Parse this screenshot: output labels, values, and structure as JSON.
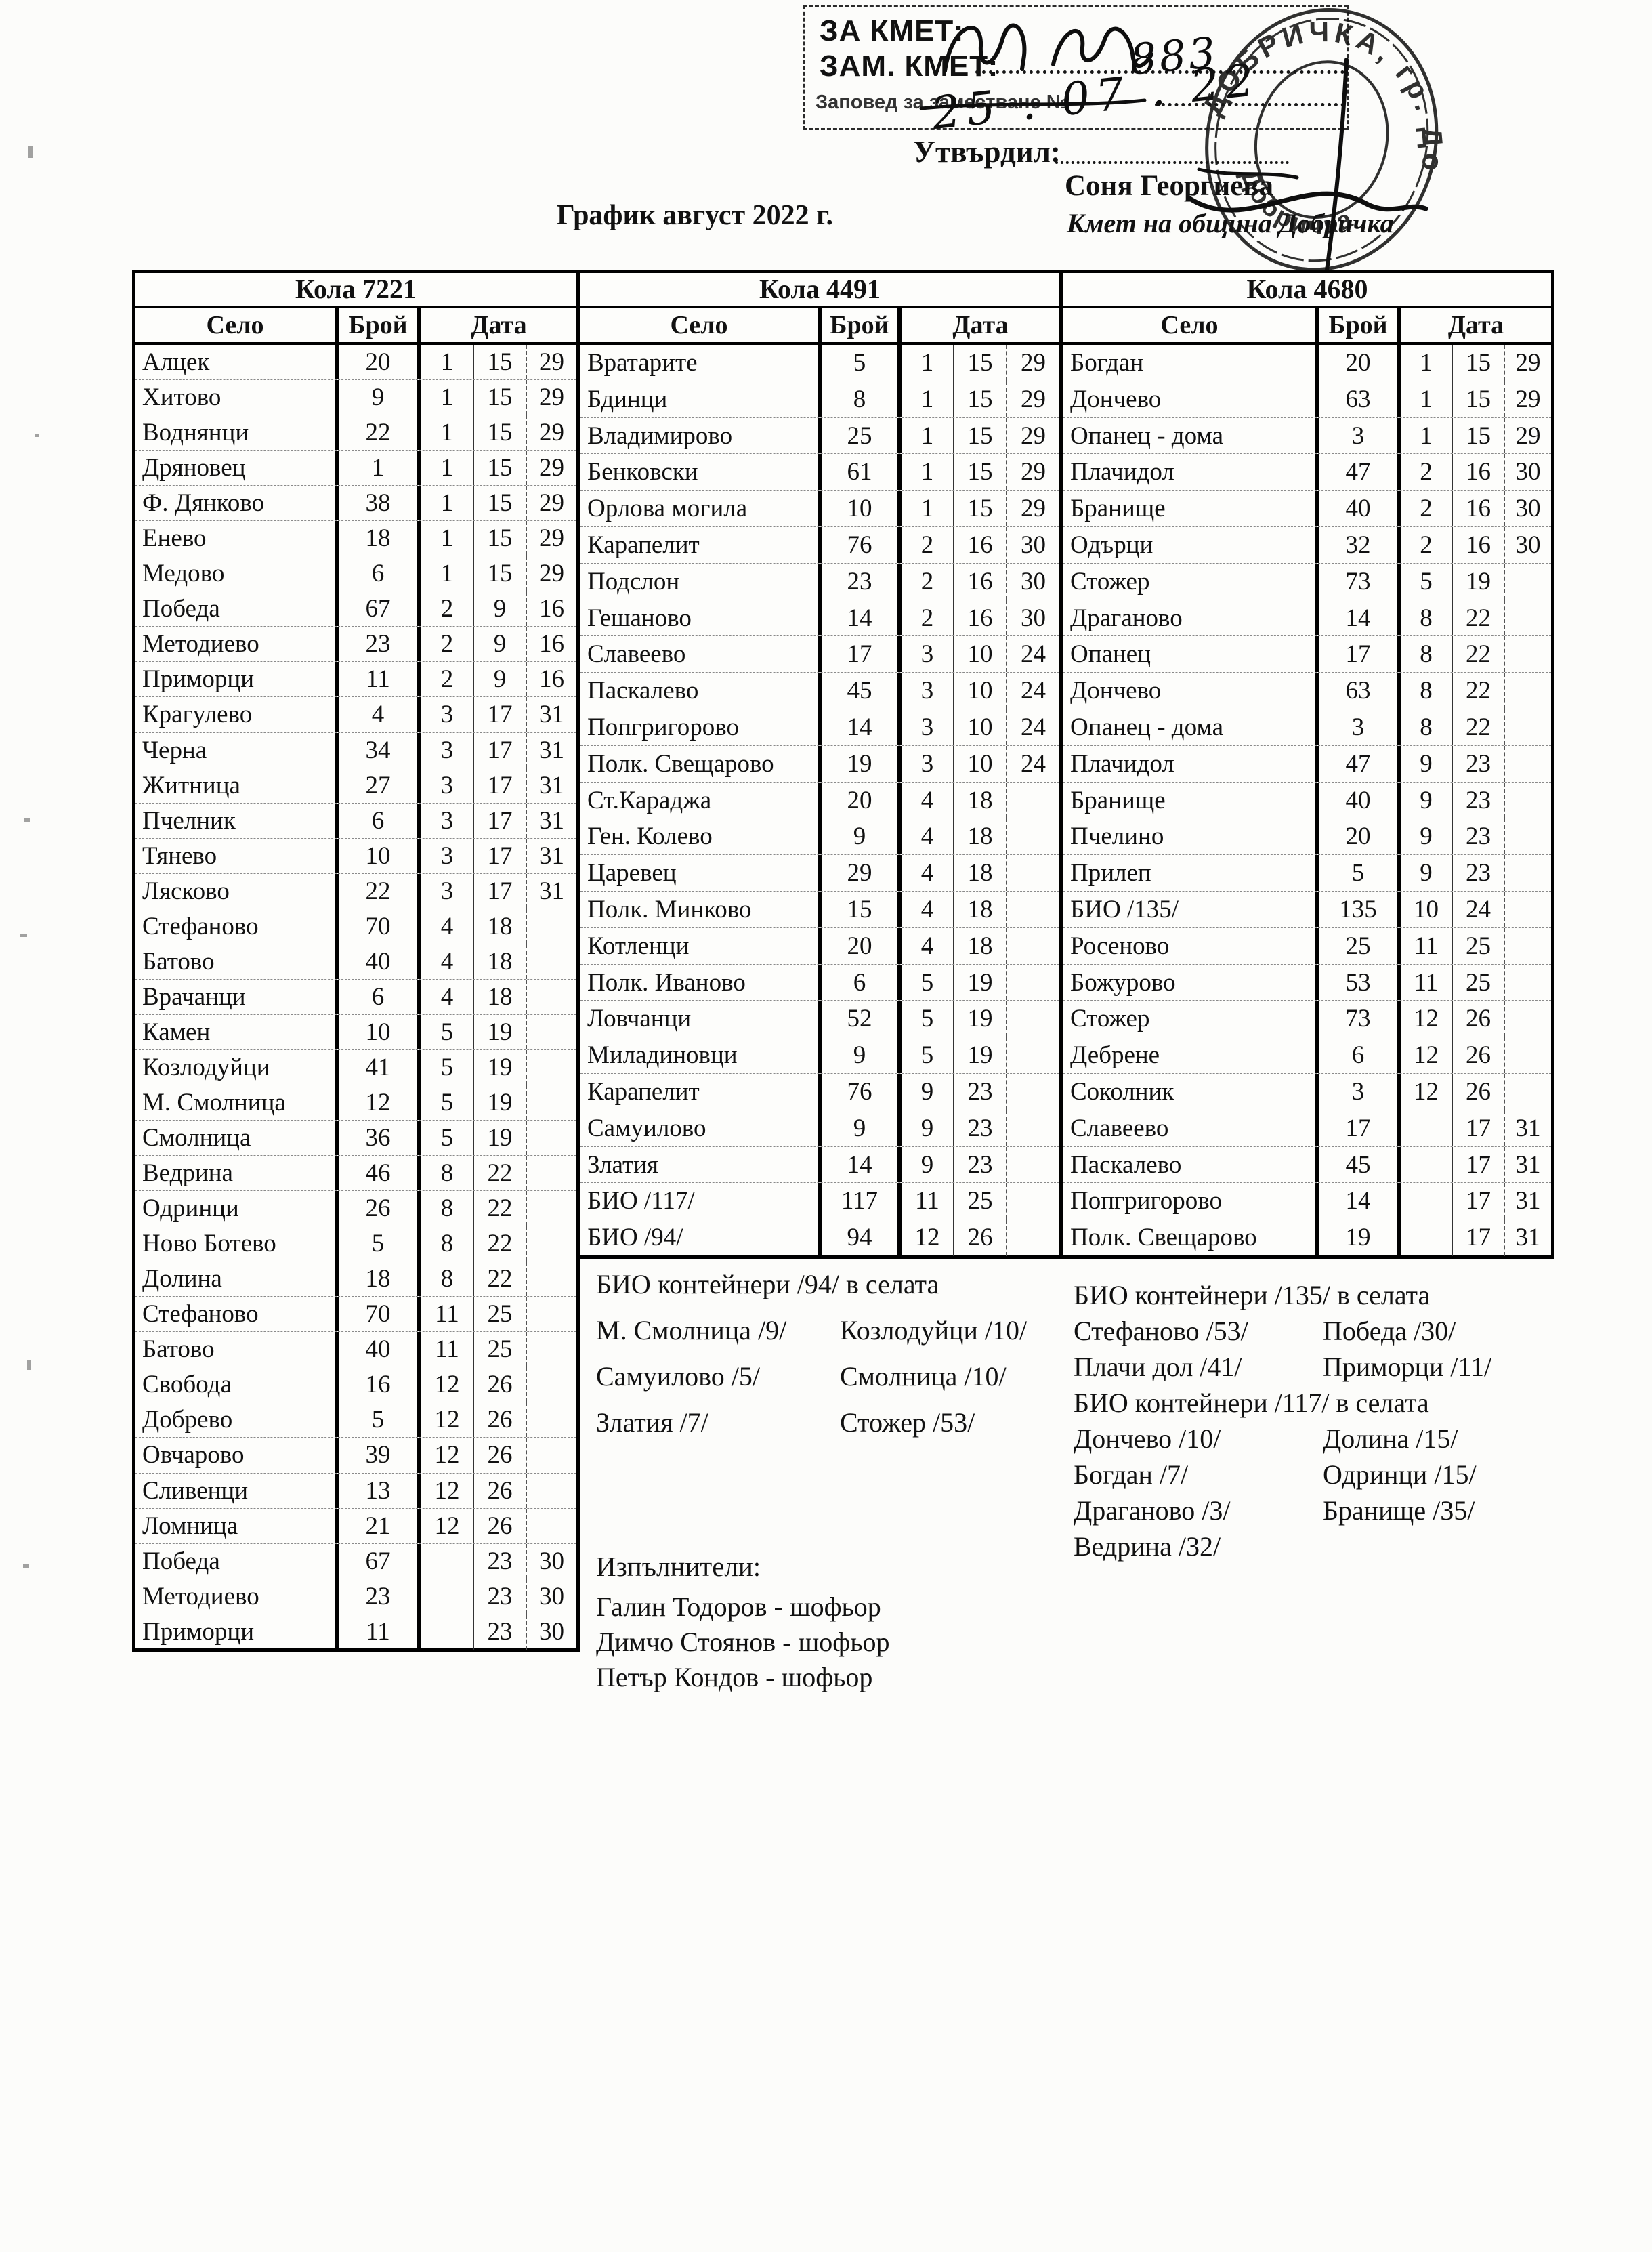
{
  "header": {
    "za_kmet": "ЗА КМЕТ:",
    "zam_kmet": "ЗАМ. КМЕТ:",
    "zapoved_label": "Заповед за заместване №",
    "handwritten_number": "883",
    "handwritten_date": "25 . 07 . 22",
    "utvardil": "Утвърдил:",
    "approver_name": "Соня Георгиева",
    "approver_title": "Кмет  на община Добричка",
    "doc_title": "График август 2022 г.",
    "stamp_arc_text": "ДОБРИЧКА, гр. Добрич",
    "stamp_arc_text2": "Добричка"
  },
  "column_headers": {
    "selo": "Село",
    "broy": "Брой",
    "data": "Дата"
  },
  "tables": [
    {
      "vehicle": "Кола 7221",
      "rows": [
        [
          "Алцек",
          "20",
          "1",
          "15",
          "29"
        ],
        [
          "Хитово",
          "9",
          "1",
          "15",
          "29"
        ],
        [
          "Воднянци",
          "22",
          "1",
          "15",
          "29"
        ],
        [
          "Дряновец",
          "1",
          "1",
          "15",
          "29"
        ],
        [
          "Ф. Дянково",
          "38",
          "1",
          "15",
          "29"
        ],
        [
          "Енево",
          "18",
          "1",
          "15",
          "29"
        ],
        [
          "Медово",
          "6",
          "1",
          "15",
          "29"
        ],
        [
          "Победа",
          "67",
          "2",
          "9",
          "16"
        ],
        [
          "Методиево",
          "23",
          "2",
          "9",
          "16"
        ],
        [
          "Приморци",
          "11",
          "2",
          "9",
          "16"
        ],
        [
          "Крагулево",
          "4",
          "3",
          "17",
          "31"
        ],
        [
          "Черна",
          "34",
          "3",
          "17",
          "31"
        ],
        [
          "Житница",
          "27",
          "3",
          "17",
          "31"
        ],
        [
          "Пчелник",
          "6",
          "3",
          "17",
          "31"
        ],
        [
          "Тянево",
          "10",
          "3",
          "17",
          "31"
        ],
        [
          "Лясково",
          "22",
          "3",
          "17",
          "31"
        ],
        [
          "Стефаново",
          "70",
          "4",
          "18",
          ""
        ],
        [
          "Батово",
          "40",
          "4",
          "18",
          ""
        ],
        [
          "Врачанци",
          "6",
          "4",
          "18",
          ""
        ],
        [
          "Камен",
          "10",
          "5",
          "19",
          ""
        ],
        [
          "Козлодуйци",
          "41",
          "5",
          "19",
          ""
        ],
        [
          "М. Смолница",
          "12",
          "5",
          "19",
          ""
        ],
        [
          "Смолница",
          "36",
          "5",
          "19",
          ""
        ],
        [
          "Ведрина",
          "46",
          "8",
          "22",
          ""
        ],
        [
          "Одринци",
          "26",
          "8",
          "22",
          ""
        ],
        [
          "Ново Ботево",
          "5",
          "8",
          "22",
          ""
        ],
        [
          "Долина",
          "18",
          "8",
          "22",
          ""
        ],
        [
          "Стефаново",
          "70",
          "11",
          "25",
          ""
        ],
        [
          "Батово",
          "40",
          "11",
          "25",
          ""
        ],
        [
          "Свобода",
          "16",
          "12",
          "26",
          ""
        ],
        [
          "Добрево",
          "5",
          "12",
          "26",
          ""
        ],
        [
          "Овчарово",
          "39",
          "12",
          "26",
          ""
        ],
        [
          "Сливенци",
          "13",
          "12",
          "26",
          ""
        ],
        [
          "Ломница",
          "21",
          "12",
          "26",
          ""
        ],
        [
          "Победа",
          "67",
          "",
          "23",
          "30"
        ],
        [
          "Методиево",
          "23",
          "",
          "23",
          "30"
        ],
        [
          "Приморци",
          "11",
          "",
          "23",
          "30"
        ]
      ]
    },
    {
      "vehicle": "Кола 4491",
      "rows": [
        [
          "Вратарите",
          "5",
          "1",
          "15",
          "29"
        ],
        [
          "Бдинци",
          "8",
          "1",
          "15",
          "29"
        ],
        [
          "Владимирово",
          "25",
          "1",
          "15",
          "29"
        ],
        [
          "Бенковски",
          "61",
          "1",
          "15",
          "29"
        ],
        [
          "Орлова могила",
          "10",
          "1",
          "15",
          "29"
        ],
        [
          "Карапелит",
          "76",
          "2",
          "16",
          "30"
        ],
        [
          "Подслон",
          "23",
          "2",
          "16",
          "30"
        ],
        [
          "Гешаново",
          "14",
          "2",
          "16",
          "30"
        ],
        [
          "Славеево",
          "17",
          "3",
          "10",
          "24"
        ],
        [
          "Паскалево",
          "45",
          "3",
          "10",
          "24"
        ],
        [
          "Попгригорово",
          "14",
          "3",
          "10",
          "24"
        ],
        [
          "Полк. Свещарово",
          "19",
          "3",
          "10",
          "24"
        ],
        [
          "Ст.Караджа",
          "20",
          "4",
          "18",
          ""
        ],
        [
          "Ген. Колево",
          "9",
          "4",
          "18",
          ""
        ],
        [
          "Царевец",
          "29",
          "4",
          "18",
          ""
        ],
        [
          "Полк. Минково",
          "15",
          "4",
          "18",
          ""
        ],
        [
          "Котленци",
          "20",
          "4",
          "18",
          ""
        ],
        [
          "Полк. Иваново",
          "6",
          "5",
          "19",
          ""
        ],
        [
          "Ловчанци",
          "52",
          "5",
          "19",
          ""
        ],
        [
          "Миладиновци",
          "9",
          "5",
          "19",
          ""
        ],
        [
          "Карапелит",
          "76",
          "9",
          "23",
          ""
        ],
        [
          "Самуилово",
          "9",
          "9",
          "23",
          ""
        ],
        [
          "Златия",
          "14",
          "9",
          "23",
          ""
        ],
        [
          "БИО /117/",
          "117",
          "11",
          "25",
          ""
        ],
        [
          "БИО /94/",
          "94",
          "12",
          "26",
          ""
        ]
      ]
    },
    {
      "vehicle": "Кола 4680",
      "rows": [
        [
          "Богдан",
          "20",
          "1",
          "15",
          "29"
        ],
        [
          "Дончево",
          "63",
          "1",
          "15",
          "29"
        ],
        [
          "Опанец - дома",
          "3",
          "1",
          "15",
          "29"
        ],
        [
          "Плачидол",
          "47",
          "2",
          "16",
          "30"
        ],
        [
          "Бранище",
          "40",
          "2",
          "16",
          "30"
        ],
        [
          "Одърци",
          "32",
          "2",
          "16",
          "30"
        ],
        [
          "Стожер",
          "73",
          "5",
          "19",
          ""
        ],
        [
          "Драганово",
          "14",
          "8",
          "22",
          ""
        ],
        [
          "Опанец",
          "17",
          "8",
          "22",
          ""
        ],
        [
          "Дончево",
          "63",
          "8",
          "22",
          ""
        ],
        [
          "Опанец - дома",
          "3",
          "8",
          "22",
          ""
        ],
        [
          "Плачидол",
          "47",
          "9",
          "23",
          ""
        ],
        [
          "Бранище",
          "40",
          "9",
          "23",
          ""
        ],
        [
          "Пчелино",
          "20",
          "9",
          "23",
          ""
        ],
        [
          "Прилеп",
          "5",
          "9",
          "23",
          ""
        ],
        [
          "БИО /135/",
          "135",
          "10",
          "24",
          ""
        ],
        [
          "Росеново",
          "25",
          "11",
          "25",
          ""
        ],
        [
          "Божурово",
          "53",
          "11",
          "25",
          ""
        ],
        [
          "Стожер",
          "73",
          "12",
          "26",
          ""
        ],
        [
          "Дебрене",
          "6",
          "12",
          "26",
          ""
        ],
        [
          "Соколник",
          "3",
          "12",
          "26",
          ""
        ],
        [
          "Славеево",
          "17",
          "",
          "17",
          "31"
        ],
        [
          "Паскалево",
          "45",
          "",
          "17",
          "31"
        ],
        [
          "Попгригорово",
          "14",
          "",
          "17",
          "31"
        ],
        [
          "Полк. Свещарово",
          "19",
          "",
          "17",
          "31"
        ]
      ]
    }
  ],
  "notes_middle": {
    "header": "БИО контейнери /94/ в селата",
    "pairs": [
      [
        "М. Смолница /9/",
        "Козлодуйци /10/"
      ],
      [
        "Самуилово /5/",
        "Смолница /10/"
      ],
      [
        "Златия /7/",
        "Стожер /53/"
      ]
    ]
  },
  "notes_right": {
    "lines": [
      {
        "h": "БИО контейнери /135/ в селата"
      },
      {
        "l": "Стефаново /53/",
        "r": "Победа /30/"
      },
      {
        "l": "Плачи дол /41/",
        "r": "Приморци /11/"
      },
      {
        "h": "БИО контейнери /117/ в селата"
      },
      {
        "l": "Дончево /10/",
        "r": "Долина /15/"
      },
      {
        "l": "Богдан /7/",
        "r": "Одринци /15/"
      },
      {
        "l": "Драганово /3/",
        "r": "Бранище /35/"
      },
      {
        "l": "Ведрина /32/",
        "r": ""
      }
    ]
  },
  "executors": {
    "header": "Изпълнители:",
    "drivers": [
      "Галин Тодоров - шофьор",
      "Димчо Стоянов - шофьор",
      "Петър Кондов - шофьор"
    ]
  }
}
